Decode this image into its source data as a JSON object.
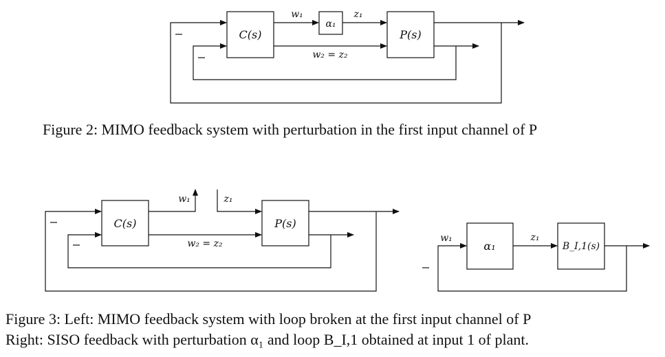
{
  "figure2": {
    "blocks": {
      "controller": "C(s)",
      "perturbation": "α₁",
      "plant": "P(s)"
    },
    "signals": {
      "w1": "w₁",
      "z1": "z₁",
      "w2z2": "w₂ = z₂"
    },
    "signs": [
      "−",
      "−"
    ],
    "caption": "Figure 2: MIMO feedback system with perturbation in the first input channel of P"
  },
  "figure3": {
    "left": {
      "blocks": {
        "controller": "C(s)",
        "plant": "P(s)"
      },
      "signals": {
        "w1": "w₁",
        "z1": "z₁",
        "w2z2": "w₂ = z₂"
      },
      "signs": [
        "−",
        "−"
      ]
    },
    "right": {
      "blocks": {
        "perturbation": "α₁",
        "loop": "B_I,1(s)"
      },
      "signals": {
        "w1": "w₁",
        "z1": "z₁"
      },
      "signs": [
        "−"
      ]
    },
    "caption_line1": "Figure 3: Left: MIMO feedback system with loop broken at the first input channel of P",
    "caption_line2": "Right: SISO feedback with perturbation α₁ and loop B_I,1 obtained at input 1 of plant."
  }
}
